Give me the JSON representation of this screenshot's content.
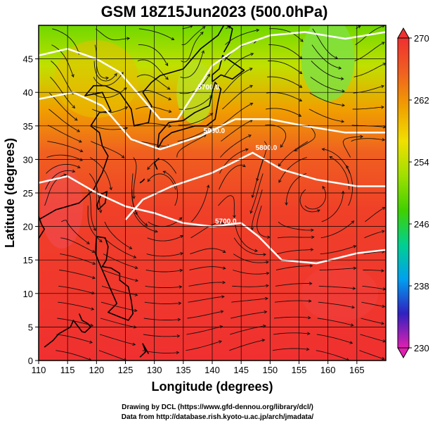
{
  "chart_data": {
    "type": "heatmap",
    "title": "GSM 18Z15Jun2023 (500.0hPa)",
    "xlabel": "Longitude (degrees)",
    "ylabel": "Latitude (degrees)",
    "xlim": [
      110,
      170
    ],
    "ylim": [
      0,
      50
    ],
    "x_ticks": [
      "110",
      "115",
      "120",
      "125",
      "130",
      "135",
      "140",
      "145",
      "150",
      "155",
      "160",
      "165"
    ],
    "y_ticks": [
      "0",
      "5",
      "10",
      "15",
      "20",
      "25",
      "30",
      "35",
      "40",
      "45"
    ],
    "grid": true,
    "colorbar": {
      "min": 230,
      "max": 270,
      "ticks": [
        "270",
        "262",
        "254",
        "246",
        "238",
        "230"
      ],
      "colors": [
        "#e020b0",
        "#3020c0",
        "#00a0f0",
        "#00d090",
        "#40d000",
        "#a0e000",
        "#f0e000",
        "#f0a000",
        "#f06020",
        "#f03030"
      ]
    },
    "contours": [
      {
        "label": "5700.0",
        "points": [
          [
            110,
            26.5
          ],
          [
            115,
            27.5
          ],
          [
            120,
            25
          ],
          [
            125,
            23
          ],
          [
            130,
            22
          ],
          [
            135,
            20.5
          ],
          [
            140,
            20
          ],
          [
            145,
            20.5
          ],
          [
            148,
            18.5
          ],
          [
            152,
            15
          ],
          [
            158,
            14.5
          ],
          [
            165,
            16
          ],
          [
            170,
            16.5
          ]
        ]
      },
      {
        "label": "5800.0",
        "points": [
          [
            125,
            21
          ],
          [
            128,
            24
          ],
          [
            133,
            26
          ],
          [
            140,
            28
          ],
          [
            147,
            31
          ],
          [
            152,
            28.5
          ],
          [
            158,
            27
          ],
          [
            165,
            26
          ],
          [
            170,
            26
          ]
        ]
      },
      {
        "label": "5900.0",
        "points": [
          [
            110,
            39
          ],
          [
            116,
            40
          ],
          [
            121,
            38
          ],
          [
            126,
            33
          ],
          [
            131,
            31.5
          ],
          [
            138,
            33.5
          ],
          [
            144,
            36
          ],
          [
            150,
            36
          ],
          [
            156,
            35
          ],
          [
            163,
            34
          ],
          [
            170,
            34
          ]
        ]
      },
      {
        "label": "5700.0",
        "points": [
          [
            110,
            45.5
          ],
          [
            115,
            46.5
          ],
          [
            120,
            45
          ],
          [
            124,
            43
          ],
          [
            128,
            39
          ],
          [
            131,
            36
          ],
          [
            134,
            36
          ],
          [
            137,
            40
          ],
          [
            140,
            44
          ],
          [
            145,
            47
          ],
          [
            150,
            48.5
          ],
          [
            156,
            49
          ],
          [
            163,
            48
          ],
          [
            170,
            49
          ]
        ]
      }
    ],
    "credits": [
      "Drawing by DCL (https://www.gfd-dennou.org/library/dcl/)",
      "Data from http://database.rish.kyoto-u.ac.jp/arch/jmadata/"
    ]
  }
}
